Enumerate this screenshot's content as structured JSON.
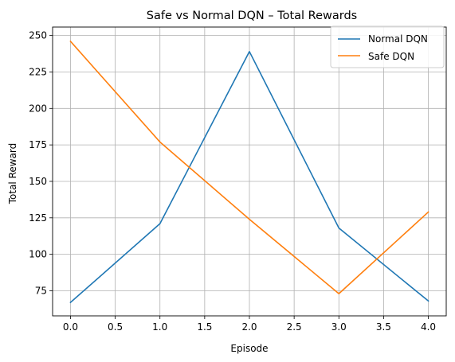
{
  "chart_data": {
    "type": "line",
    "title": "Safe vs Normal DQN – Total Rewards",
    "xlabel": "Episode",
    "ylabel": "Total Reward",
    "x": [
      0,
      1,
      2,
      3,
      4
    ],
    "xlim": [
      -0.2,
      4.2
    ],
    "ylim": [
      57.8,
      255.8
    ],
    "xticks": [
      0.0,
      0.5,
      1.0,
      1.5,
      2.0,
      2.5,
      3.0,
      3.5,
      4.0
    ],
    "xtick_labels": [
      "0.0",
      "0.5",
      "1.0",
      "1.5",
      "2.0",
      "2.5",
      "3.0",
      "3.5",
      "4.0"
    ],
    "yticks": [
      75,
      100,
      125,
      150,
      175,
      200,
      225,
      250
    ],
    "ytick_labels": [
      "75",
      "100",
      "125",
      "150",
      "175",
      "200",
      "225",
      "250"
    ],
    "grid": true,
    "legend_position": "top-right",
    "series": [
      {
        "name": "Normal DQN",
        "color": "#1f77b4",
        "values": [
          67,
          121,
          239,
          118,
          68
        ]
      },
      {
        "name": "Safe DQN",
        "color": "#ff7f0e",
        "values": [
          246,
          177,
          124,
          73,
          129
        ]
      }
    ]
  }
}
